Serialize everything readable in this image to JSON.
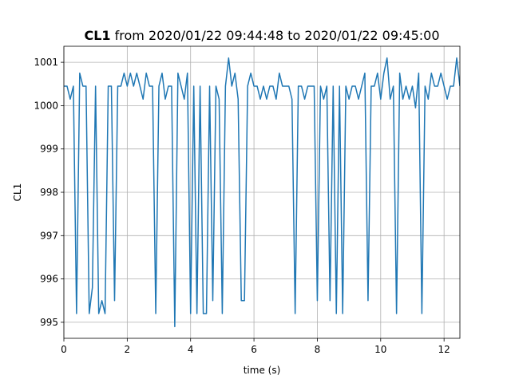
{
  "chart_data": {
    "type": "line",
    "title": {
      "bold": "CL1",
      "text": "from 2020/01/22 09:44:48 to 2020/01/22 09:45:00"
    },
    "xlabel": "time (s)",
    "ylabel": "CL1",
    "x": [
      0,
      0.1,
      0.2,
      0.3,
      0.4,
      0.5,
      0.6,
      0.7,
      0.8,
      0.9,
      1,
      1.1,
      1.2,
      1.3,
      1.4,
      1.5,
      1.6,
      1.7,
      1.8,
      1.9,
      2,
      2.1,
      2.2,
      2.3,
      2.4,
      2.5,
      2.6,
      2.7,
      2.8,
      2.9,
      3,
      3.1,
      3.2,
      3.3,
      3.4,
      3.5,
      3.6,
      3.7,
      3.8,
      3.9,
      4,
      4.1,
      4.2,
      4.3,
      4.4,
      4.5,
      4.6,
      4.7,
      4.8,
      4.9,
      5,
      5.1,
      5.2,
      5.3,
      5.4,
      5.5,
      5.6,
      5.7,
      5.8,
      5.9,
      6,
      6.1,
      6.2,
      6.3,
      6.4,
      6.5,
      6.6,
      6.7,
      6.8,
      6.9,
      7,
      7.1,
      7.2,
      7.3,
      7.4,
      7.5,
      7.6,
      7.7,
      7.8,
      7.9,
      8,
      8.1,
      8.2,
      8.3,
      8.4,
      8.5,
      8.6,
      8.7,
      8.8,
      8.9,
      9,
      9.1,
      9.2,
      9.3,
      9.4,
      9.5,
      9.6,
      9.7,
      9.8,
      9.9,
      10,
      10.1,
      10.2,
      10.3,
      10.4,
      10.5,
      10.6,
      10.7,
      10.8,
      10.9,
      11,
      11.1,
      11.2,
      11.3,
      11.4,
      11.5,
      11.6,
      11.7,
      11.8,
      11.9,
      12,
      12.1,
      12.2,
      12.3,
      12.4,
      12.5
    ],
    "series": [
      {
        "name": "CL1",
        "color": "#1f77b4",
        "values": [
          1000.45,
          1000.45,
          1000.15,
          1000.45,
          995.2,
          1000.75,
          1000.45,
          1000.45,
          995.2,
          995.8,
          1000.45,
          995.2,
          995.5,
          995.2,
          1000.45,
          1000.45,
          995.5,
          1000.45,
          1000.45,
          1000.75,
          1000.45,
          1000.75,
          1000.45,
          1000.75,
          1000.45,
          1000.15,
          1000.75,
          1000.45,
          1000.45,
          995.2,
          1000.45,
          1000.75,
          1000.15,
          1000.45,
          1000.45,
          994.9,
          1000.75,
          1000.45,
          1000.15,
          1000.75,
          995.2,
          1000.45,
          995.2,
          1000.45,
          995.2,
          995.2,
          1000.45,
          995.5,
          1000.45,
          1000.15,
          995.2,
          1000.45,
          1001.1,
          1000.45,
          1000.75,
          1000.15,
          995.5,
          995.5,
          1000.45,
          1000.75,
          1000.45,
          1000.45,
          1000.15,
          1000.45,
          1000.15,
          1000.45,
          1000.45,
          1000.15,
          1000.75,
          1000.45,
          1000.45,
          1000.45,
          1000.15,
          995.2,
          1000.45,
          1000.45,
          1000.15,
          1000.45,
          1000.45,
          1000.45,
          995.5,
          1000.45,
          1000.15,
          1000.45,
          995.5,
          1000.45,
          995.2,
          1000.45,
          995.2,
          1000.45,
          1000.15,
          1000.45,
          1000.45,
          1000.15,
          1000.45,
          1000.75,
          995.5,
          1000.45,
          1000.45,
          1000.75,
          1000.15,
          1000.75,
          1001.1,
          1000.15,
          1000.45,
          995.2,
          1000.75,
          1000.15,
          1000.45,
          1000.15,
          1000.45,
          999.95,
          1000.75,
          995.2,
          1000.45,
          1000.15,
          1000.75,
          1000.45,
          1000.45,
          1000.75,
          1000.45,
          1000.15,
          1000.45,
          1000.45,
          1001.1,
          1000.45
        ]
      }
    ],
    "xlim": [
      0,
      12.5
    ],
    "xticks": [
      0,
      2,
      4,
      6,
      8,
      10,
      12
    ],
    "ylim": [
      994.63,
      1001.37
    ],
    "yticks": [
      995,
      996,
      997,
      998,
      999,
      1000,
      1001
    ],
    "grid": true
  }
}
